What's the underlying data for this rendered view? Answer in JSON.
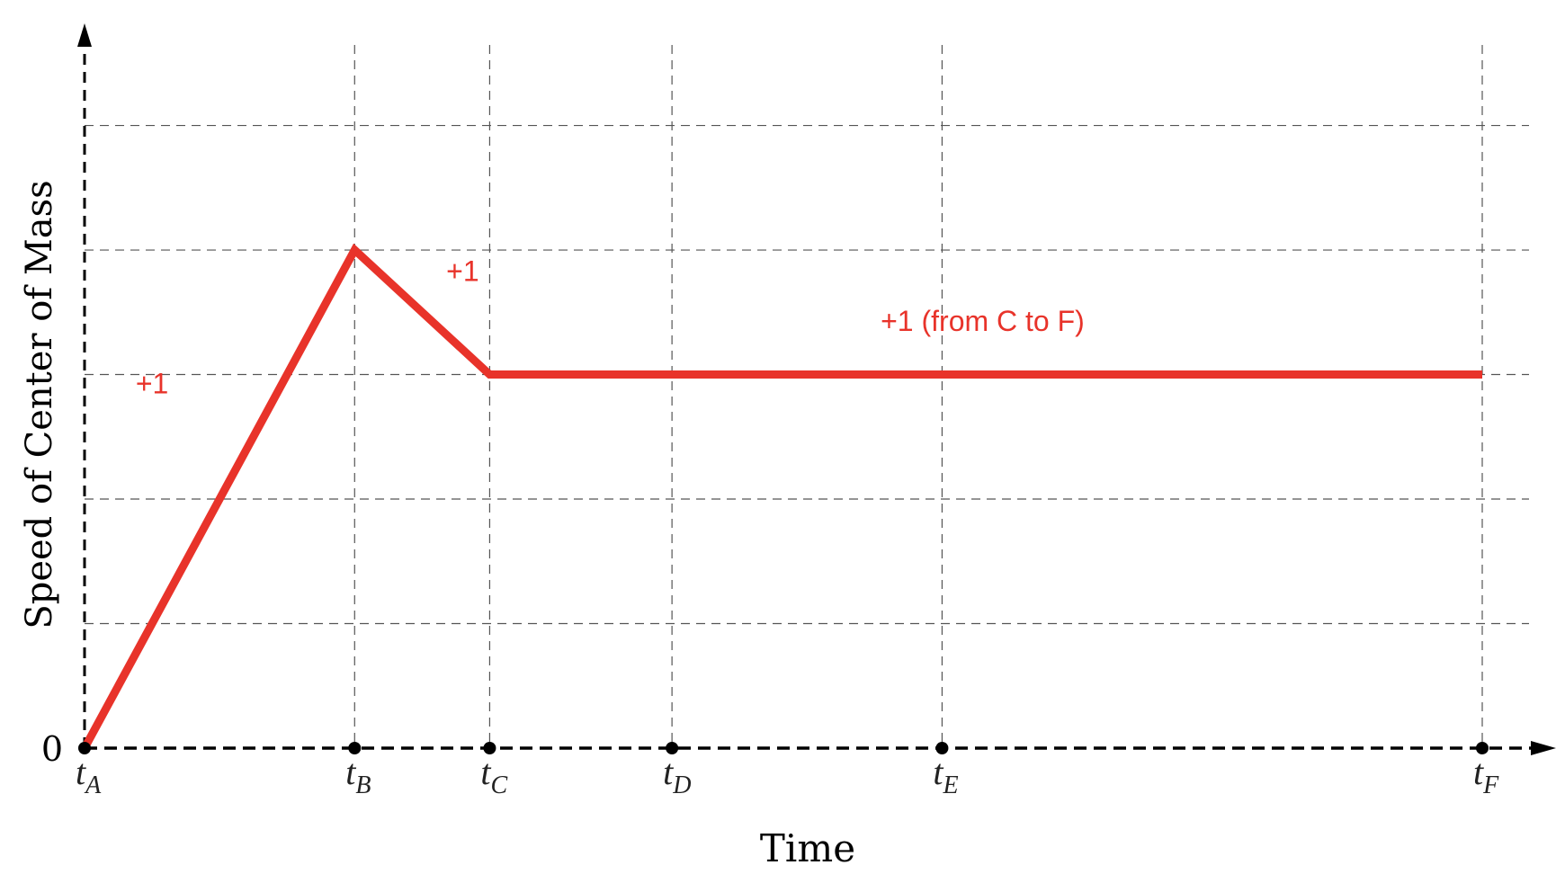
{
  "chart_data": {
    "type": "line",
    "title": "",
    "xlabel": "Time",
    "ylabel": "Speed of Center of Mass",
    "grid": true,
    "x_ticks": [
      {
        "base": "t",
        "sub": "A"
      },
      {
        "base": "t",
        "sub": "B"
      },
      {
        "base": "t",
        "sub": "C"
      },
      {
        "base": "t",
        "sub": "D"
      },
      {
        "base": "t",
        "sub": "E"
      },
      {
        "base": "t",
        "sub": "F"
      }
    ],
    "x_tick_values": [
      0,
      2,
      3,
      4.35,
      6.35,
      10.35
    ],
    "y_tick_labels": [
      "0"
    ],
    "y_grid_levels": [
      0,
      1,
      2,
      3,
      4,
      5
    ],
    "xlim": [
      0,
      10.35
    ],
    "ylim": [
      0,
      5.3
    ],
    "series": [
      {
        "color": "#e8332a",
        "points": [
          [
            0,
            0
          ],
          [
            2,
            4
          ],
          [
            3,
            3
          ],
          [
            10.35,
            3
          ]
        ]
      }
    ],
    "annotations": [
      {
        "text": "+1",
        "x": 0.5,
        "y": 2.85
      },
      {
        "text": "+1",
        "x": 2.8,
        "y": 3.75
      },
      {
        "text": "+1 (from C to F)",
        "x": 6.65,
        "y": 3.35
      }
    ]
  }
}
